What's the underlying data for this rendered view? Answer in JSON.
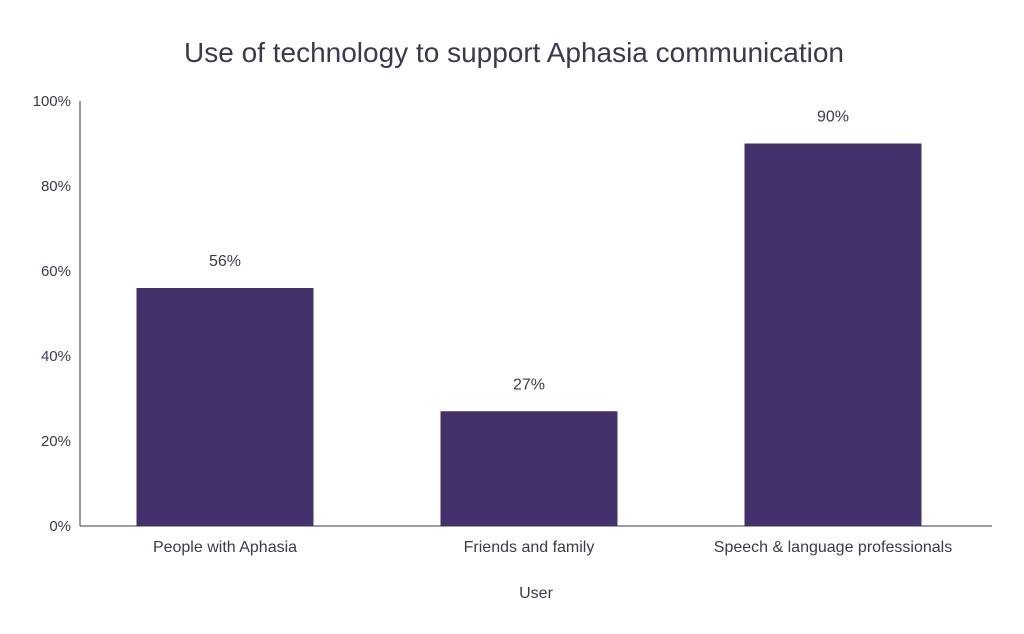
{
  "chart_data": {
    "type": "bar",
    "title": "Use of technology to support Aphasia communication",
    "xlabel": "User",
    "ylabel": "",
    "categories": [
      "People with Aphasia",
      "Friends and family",
      "Speech & language professionals"
    ],
    "values": [
      56,
      27,
      90
    ],
    "data_labels": [
      "56%",
      "27%",
      "90%"
    ],
    "ylim": [
      0,
      100
    ],
    "yticks": [
      0,
      20,
      40,
      60,
      80,
      100
    ],
    "ytick_labels": [
      "0%",
      "20%",
      "40%",
      "60%",
      "80%",
      "100%"
    ],
    "grid": false,
    "legend": "none",
    "colors": {
      "bar": "#44306a",
      "text": "#3a3a4e",
      "axis": "#3a3a4e"
    }
  }
}
